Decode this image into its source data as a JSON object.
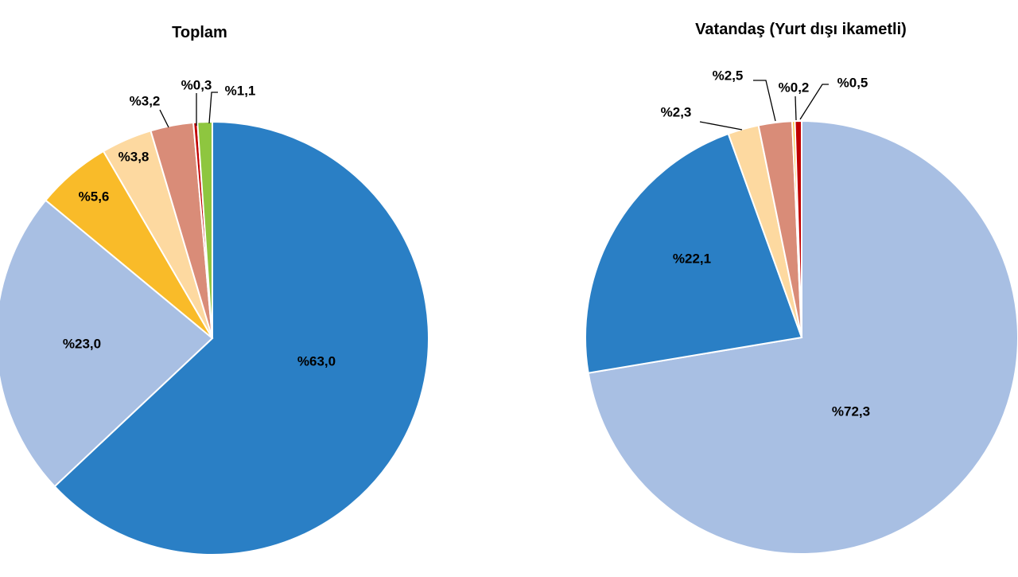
{
  "chart_data": [
    {
      "type": "pie",
      "title": "Toplam",
      "slices": [
        {
          "value": 63.0,
          "label": "%63,0",
          "color": "#2a7fc5"
        },
        {
          "value": 23.0,
          "label": "%23,0",
          "color": "#a8bfe3"
        },
        {
          "value": 5.6,
          "label": "%5,6",
          "color": "#f9bb29"
        },
        {
          "value": 3.8,
          "label": "%3,8",
          "color": "#fdd9a0"
        },
        {
          "value": 3.2,
          "label": "%3,2",
          "color": "#d98c78"
        },
        {
          "value": 0.3,
          "label": "%0,3",
          "color": "#c00000"
        },
        {
          "value": 1.1,
          "label": "%1,1",
          "color": "#8ec63f"
        }
      ]
    },
    {
      "type": "pie",
      "title": "Vatandaş (Yurt dışı ikametli)",
      "slices": [
        {
          "value": 72.3,
          "label": "%72,3",
          "color": "#a8bfe3"
        },
        {
          "value": 22.1,
          "label": "%22,1",
          "color": "#2a7fc5"
        },
        {
          "value": 2.3,
          "label": "%2,3",
          "color": "#fdd9a0"
        },
        {
          "value": 2.5,
          "label": "%2,5",
          "color": "#d98c78"
        },
        {
          "value": 0.2,
          "label": "%0,2",
          "color": "#f9bb29"
        },
        {
          "value": 0.5,
          "label": "%0,5",
          "color": "#c00000"
        }
      ]
    }
  ]
}
